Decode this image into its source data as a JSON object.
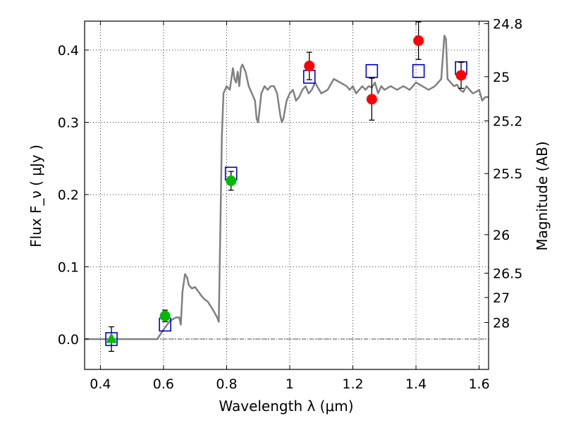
{
  "chart_data": {
    "type": "scatter",
    "xlabel": "Wavelength  λ (μm)",
    "ylabel": "Flux  F_ν  ( μJy )",
    "ylabel_right": "Magnitude (AB)",
    "xlim": [
      0.35,
      1.63
    ],
    "ylim": [
      -0.042,
      0.44
    ],
    "x_ticks": [
      0.4,
      0.6,
      0.8,
      1.0,
      1.2,
      1.4,
      1.6
    ],
    "x_tick_labels": [
      "0.4",
      "0.6",
      "0.8",
      "1",
      "1.2",
      "1.4",
      "1.6"
    ],
    "y_ticks": [
      0.0,
      0.1,
      0.2,
      0.3,
      0.4
    ],
    "y_tick_labels": [
      "0.0",
      "0.1",
      "0.2",
      "0.3",
      "0.4"
    ],
    "mag_ticks": [
      {
        "flux": 0.4365,
        "label": "24.8"
      },
      {
        "flux": 0.3631,
        "label": "25"
      },
      {
        "flux": 0.302,
        "label": "25.2"
      },
      {
        "flux": 0.2291,
        "label": "25.5"
      },
      {
        "flux": 0.1445,
        "label": "26"
      },
      {
        "flux": 0.0912,
        "label": "26.5"
      },
      {
        "flux": 0.0575,
        "label": "27"
      },
      {
        "flux": 0.0229,
        "label": "28"
      }
    ],
    "grid": true,
    "zero_line": true,
    "spectrum": {
      "color": "#808080",
      "x": [
        0.35,
        0.58,
        0.6,
        0.62,
        0.64,
        0.65,
        0.655,
        0.66,
        0.668,
        0.675,
        0.68,
        0.69,
        0.7,
        0.71,
        0.72,
        0.73,
        0.74,
        0.75,
        0.76,
        0.77,
        0.775,
        0.78,
        0.785,
        0.79,
        0.8,
        0.81,
        0.815,
        0.82,
        0.825,
        0.83,
        0.835,
        0.84,
        0.845,
        0.85,
        0.86,
        0.87,
        0.88,
        0.89,
        0.895,
        0.9,
        0.91,
        0.92,
        0.93,
        0.94,
        0.95,
        0.96,
        0.97,
        0.975,
        0.98,
        0.99,
        1.0,
        1.01,
        1.02,
        1.03,
        1.04,
        1.05,
        1.06,
        1.07,
        1.08,
        1.1,
        1.12,
        1.14,
        1.16,
        1.18,
        1.19,
        1.2,
        1.21,
        1.22,
        1.23,
        1.24,
        1.25,
        1.26,
        1.27,
        1.28,
        1.29,
        1.3,
        1.32,
        1.34,
        1.36,
        1.38,
        1.4,
        1.42,
        1.44,
        1.46,
        1.48,
        1.49,
        1.495,
        1.5,
        1.51,
        1.52,
        1.53,
        1.54,
        1.55,
        1.56,
        1.57,
        1.58,
        1.59,
        1.6,
        1.61,
        1.62,
        1.63
      ],
      "y": [
        0.0,
        0.0,
        0.013,
        0.025,
        0.03,
        0.03,
        0.02,
        0.065,
        0.09,
        0.085,
        0.075,
        0.07,
        0.072,
        0.066,
        0.06,
        0.055,
        0.052,
        0.045,
        0.038,
        0.03,
        0.024,
        0.15,
        0.28,
        0.34,
        0.35,
        0.345,
        0.36,
        0.375,
        0.36,
        0.355,
        0.37,
        0.35,
        0.375,
        0.38,
        0.37,
        0.35,
        0.34,
        0.33,
        0.305,
        0.3,
        0.34,
        0.35,
        0.345,
        0.35,
        0.35,
        0.34,
        0.31,
        0.3,
        0.305,
        0.33,
        0.34,
        0.345,
        0.33,
        0.335,
        0.345,
        0.35,
        0.34,
        0.345,
        0.355,
        0.34,
        0.345,
        0.36,
        0.355,
        0.35,
        0.345,
        0.35,
        0.34,
        0.345,
        0.35,
        0.345,
        0.35,
        0.348,
        0.355,
        0.34,
        0.35,
        0.345,
        0.35,
        0.345,
        0.35,
        0.345,
        0.355,
        0.35,
        0.345,
        0.35,
        0.36,
        0.42,
        0.415,
        0.36,
        0.355,
        0.35,
        0.352,
        0.345,
        0.342,
        0.35,
        0.345,
        0.34,
        0.342,
        0.345,
        0.33,
        0.335,
        0.335
      ]
    },
    "model_points": {
      "color": "#0000cc",
      "marker": "square-open",
      "x": [
        0.435,
        0.605,
        0.814,
        1.062,
        1.26,
        1.408,
        1.543
      ],
      "y": [
        0.0,
        0.02,
        0.229,
        0.363,
        0.371,
        0.371,
        0.375
      ]
    },
    "detections": [
      {
        "x": 0.605,
        "y": 0.032,
        "err": 0.008,
        "color": "#00bb00",
        "marker": "circle"
      },
      {
        "x": 0.814,
        "y": 0.219,
        "err": 0.013,
        "color": "#00bb00",
        "marker": "circle"
      },
      {
        "x": 1.062,
        "y": 0.378,
        "err": 0.019,
        "color": "#ff0000",
        "marker": "circle"
      },
      {
        "x": 1.26,
        "y": 0.332,
        "err": 0.029,
        "color": "#ff0000",
        "marker": "circle"
      },
      {
        "x": 1.408,
        "y": 0.413,
        "err": 0.026,
        "color": "#ff0000",
        "marker": "circle"
      },
      {
        "x": 1.543,
        "y": 0.365,
        "err": 0.018,
        "color": "#ff0000",
        "marker": "circle"
      }
    ],
    "upper_limits": [
      {
        "x": 0.435,
        "y": 0.0,
        "err": 0.017,
        "color": "#00bb00",
        "marker": "triangle"
      }
    ]
  }
}
